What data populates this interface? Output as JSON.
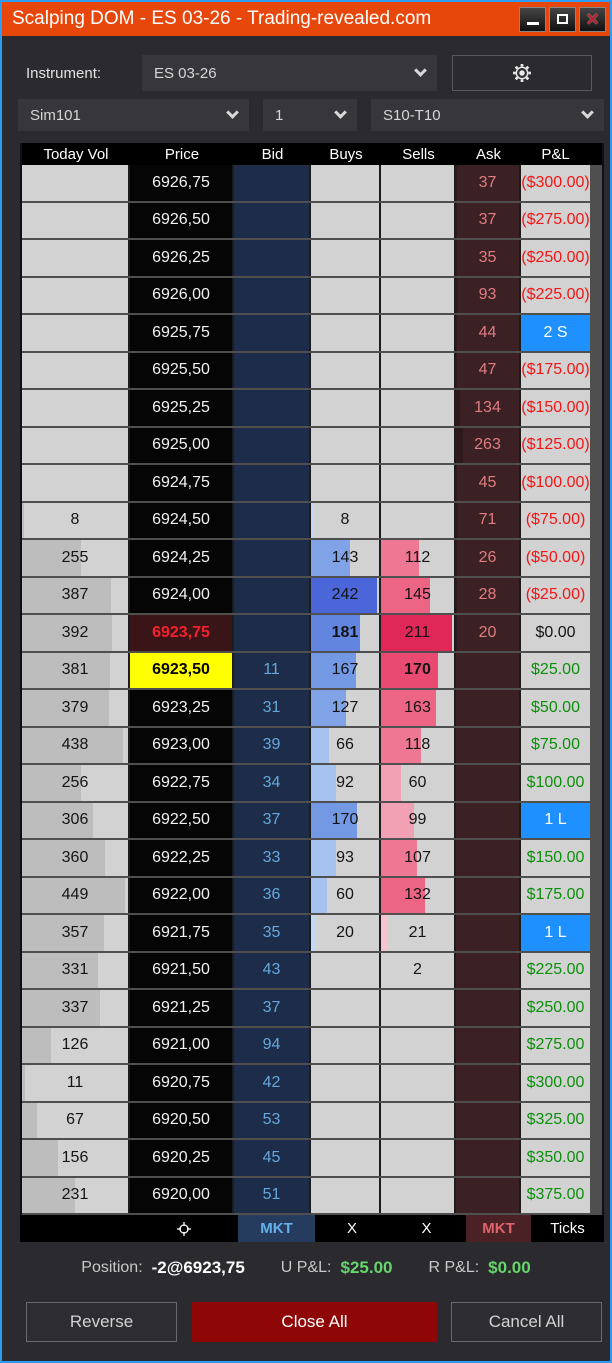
{
  "window": {
    "title": "Scalping DOM - ES 03-26 - Trading-revealed.com"
  },
  "toolbar": {
    "instrument_label": "Instrument:",
    "instrument_value": "ES 03-26"
  },
  "selectors": {
    "account": "Sim101",
    "quantity": "1",
    "strategy": "S10-T10"
  },
  "table": {
    "headers": [
      "Today Vol",
      "Price",
      "Bid",
      "Buys",
      "Sells",
      "Ask",
      "P&L"
    ],
    "rows": [
      {
        "vol": "",
        "price": "6926,75",
        "bid": "",
        "buys": "",
        "sells": "",
        "ask": "37",
        "pnl": "($300.00)",
        "pnl_type": "neg",
        "price_type": ""
      },
      {
        "vol": "",
        "price": "6926,50",
        "bid": "",
        "buys": "",
        "sells": "",
        "ask": "37",
        "pnl": "($275.00)",
        "pnl_type": "neg",
        "price_type": ""
      },
      {
        "vol": "",
        "price": "6926,25",
        "bid": "",
        "buys": "",
        "sells": "",
        "ask": "35",
        "pnl": "($250.00)",
        "pnl_type": "neg",
        "price_type": ""
      },
      {
        "vol": "",
        "price": "6926,00",
        "bid": "",
        "buys": "",
        "sells": "",
        "ask": "93",
        "pnl": "($225.00)",
        "pnl_type": "neg",
        "price_type": ""
      },
      {
        "vol": "",
        "price": "6925,75",
        "bid": "",
        "buys": "",
        "sells": "",
        "ask": "44",
        "pnl": "2 S",
        "pnl_type": "marker",
        "price_type": ""
      },
      {
        "vol": "",
        "price": "6925,50",
        "bid": "",
        "buys": "",
        "sells": "",
        "ask": "47",
        "pnl": "($175.00)",
        "pnl_type": "neg",
        "price_type": ""
      },
      {
        "vol": "",
        "price": "6925,25",
        "bid": "",
        "buys": "",
        "sells": "",
        "ask": "134",
        "pnl": "($150.00)",
        "pnl_type": "neg",
        "price_type": ""
      },
      {
        "vol": "",
        "price": "6925,00",
        "bid": "",
        "buys": "",
        "sells": "",
        "ask": "263",
        "pnl": "($125.00)",
        "pnl_type": "neg",
        "price_type": ""
      },
      {
        "vol": "",
        "price": "6924,75",
        "bid": "",
        "buys": "",
        "sells": "",
        "ask": "45",
        "pnl": "($100.00)",
        "pnl_type": "neg",
        "price_type": ""
      },
      {
        "vol": "8",
        "price": "6924,50",
        "bid": "",
        "buys": "8",
        "sells": "",
        "ask": "71",
        "pnl": "($75.00)",
        "pnl_type": "neg",
        "price_type": ""
      },
      {
        "vol": "255",
        "price": "6924,25",
        "bid": "",
        "buys": "143",
        "sells": "112",
        "ask": "26",
        "pnl": "($50.00)",
        "pnl_type": "neg",
        "price_type": ""
      },
      {
        "vol": "387",
        "price": "6924,00",
        "bid": "",
        "buys": "242",
        "sells": "145",
        "ask": "28",
        "pnl": "($25.00)",
        "pnl_type": "neg",
        "price_type": ""
      },
      {
        "vol": "392",
        "price": "6923,75",
        "bid": "",
        "buys": "181",
        "sells": "211",
        "ask": "20",
        "pnl": "$0.00",
        "pnl_type": "zero",
        "price_type": "entry",
        "bold_buys": true
      },
      {
        "vol": "381",
        "price": "6923,50",
        "bid": "11",
        "buys": "167",
        "sells": "170",
        "ask": "",
        "pnl": "$25.00",
        "pnl_type": "pos",
        "price_type": "last",
        "bold_sells": true
      },
      {
        "vol": "379",
        "price": "6923,25",
        "bid": "31",
        "buys": "127",
        "sells": "163",
        "ask": "",
        "pnl": "$50.00",
        "pnl_type": "pos",
        "price_type": ""
      },
      {
        "vol": "438",
        "price": "6923,00",
        "bid": "39",
        "buys": "66",
        "sells": "118",
        "ask": "",
        "pnl": "$75.00",
        "pnl_type": "pos",
        "price_type": ""
      },
      {
        "vol": "256",
        "price": "6922,75",
        "bid": "34",
        "buys": "92",
        "sells": "60",
        "ask": "",
        "pnl": "$100.00",
        "pnl_type": "pos",
        "price_type": ""
      },
      {
        "vol": "306",
        "price": "6922,50",
        "bid": "37",
        "buys": "170",
        "sells": "99",
        "ask": "",
        "pnl": "1 L",
        "pnl_type": "marker",
        "price_type": ""
      },
      {
        "vol": "360",
        "price": "6922,25",
        "bid": "33",
        "buys": "93",
        "sells": "107",
        "ask": "",
        "pnl": "$150.00",
        "pnl_type": "pos",
        "price_type": ""
      },
      {
        "vol": "449",
        "price": "6922,00",
        "bid": "36",
        "buys": "60",
        "sells": "132",
        "ask": "",
        "pnl": "$175.00",
        "pnl_type": "pos",
        "price_type": ""
      },
      {
        "vol": "357",
        "price": "6921,75",
        "bid": "35",
        "buys": "20",
        "sells": "21",
        "ask": "",
        "pnl": "1 L",
        "pnl_type": "marker",
        "price_type": ""
      },
      {
        "vol": "331",
        "price": "6921,50",
        "bid": "43",
        "buys": "",
        "sells": "2",
        "ask": "",
        "pnl": "$225.00",
        "pnl_type": "pos",
        "price_type": ""
      },
      {
        "vol": "337",
        "price": "6921,25",
        "bid": "37",
        "buys": "",
        "sells": "",
        "ask": "",
        "pnl": "$250.00",
        "pnl_type": "pos",
        "price_type": ""
      },
      {
        "vol": "126",
        "price": "6921,00",
        "bid": "94",
        "buys": "",
        "sells": "",
        "ask": "",
        "pnl": "$275.00",
        "pnl_type": "pos",
        "price_type": ""
      },
      {
        "vol": "11",
        "price": "6920,75",
        "bid": "42",
        "buys": "",
        "sells": "",
        "ask": "",
        "pnl": "$300.00",
        "pnl_type": "pos",
        "price_type": ""
      },
      {
        "vol": "67",
        "price": "6920,50",
        "bid": "53",
        "buys": "",
        "sells": "",
        "ask": "",
        "pnl": "$325.00",
        "pnl_type": "pos",
        "price_type": ""
      },
      {
        "vol": "156",
        "price": "6920,25",
        "bid": "45",
        "buys": "",
        "sells": "",
        "ask": "",
        "pnl": "$350.00",
        "pnl_type": "pos",
        "price_type": ""
      },
      {
        "vol": "231",
        "price": "6920,00",
        "bid": "51",
        "buys": "",
        "sells": "",
        "ask": "",
        "pnl": "$375.00",
        "pnl_type": "pos",
        "price_type": ""
      }
    ]
  },
  "footer": {
    "mkt_buy": "MKT",
    "cancel_buys": "X",
    "cancel_sells": "X",
    "mkt_sell": "MKT",
    "ticks": "Ticks"
  },
  "position": {
    "label": "Position:",
    "value": "-2@6923,75",
    "upl_label": "U P&L:",
    "upl_value": "$25.00",
    "rpl_label": "R P&L:",
    "rpl_value": "$0.00"
  },
  "buttons": {
    "reverse": "Reverse",
    "close_all": "Close All",
    "cancel_all": "Cancel All"
  },
  "colors": {
    "titlebar": "#e8470c",
    "window_border": "#2e9cf4",
    "bid_bg": "#1d2c48",
    "ask_bg": "#3c2124",
    "entry_price_bg": "#3a1517",
    "entry_price_text": "#f5202e",
    "last_price_bg": "#ffff00",
    "marker_bg": "#1e90ff",
    "pnl_neg": "#f51515",
    "pnl_pos": "#0b8f0b",
    "footer_mkt_buy": "#63b0ea",
    "footer_mkt_sell": "#e0636e"
  },
  "bars": {
    "vol_divisor": 460,
    "buys_divisor": 250,
    "sells_divisor": 218,
    "ask_divisor": 2400,
    "vol_color": "#bdbdbd",
    "ask_bar_color": "rgba(0,0,0,0.22)",
    "buy_tiers": [
      [
        220,
        "#4a66d8"
      ],
      [
        175,
        "#6285e0"
      ],
      [
        150,
        "#7499e4"
      ],
      [
        100,
        "#7fa3e6"
      ],
      [
        40,
        "#a5c3ee"
      ],
      [
        0,
        "#c2d8f4"
      ]
    ],
    "sell_tiers": [
      [
        200,
        "#e02858"
      ],
      [
        165,
        "#e84a72"
      ],
      [
        130,
        "#ec6585"
      ],
      [
        100,
        "#ee7894"
      ],
      [
        40,
        "#f2a0b4"
      ],
      [
        0,
        "#f6c4cf"
      ]
    ]
  }
}
